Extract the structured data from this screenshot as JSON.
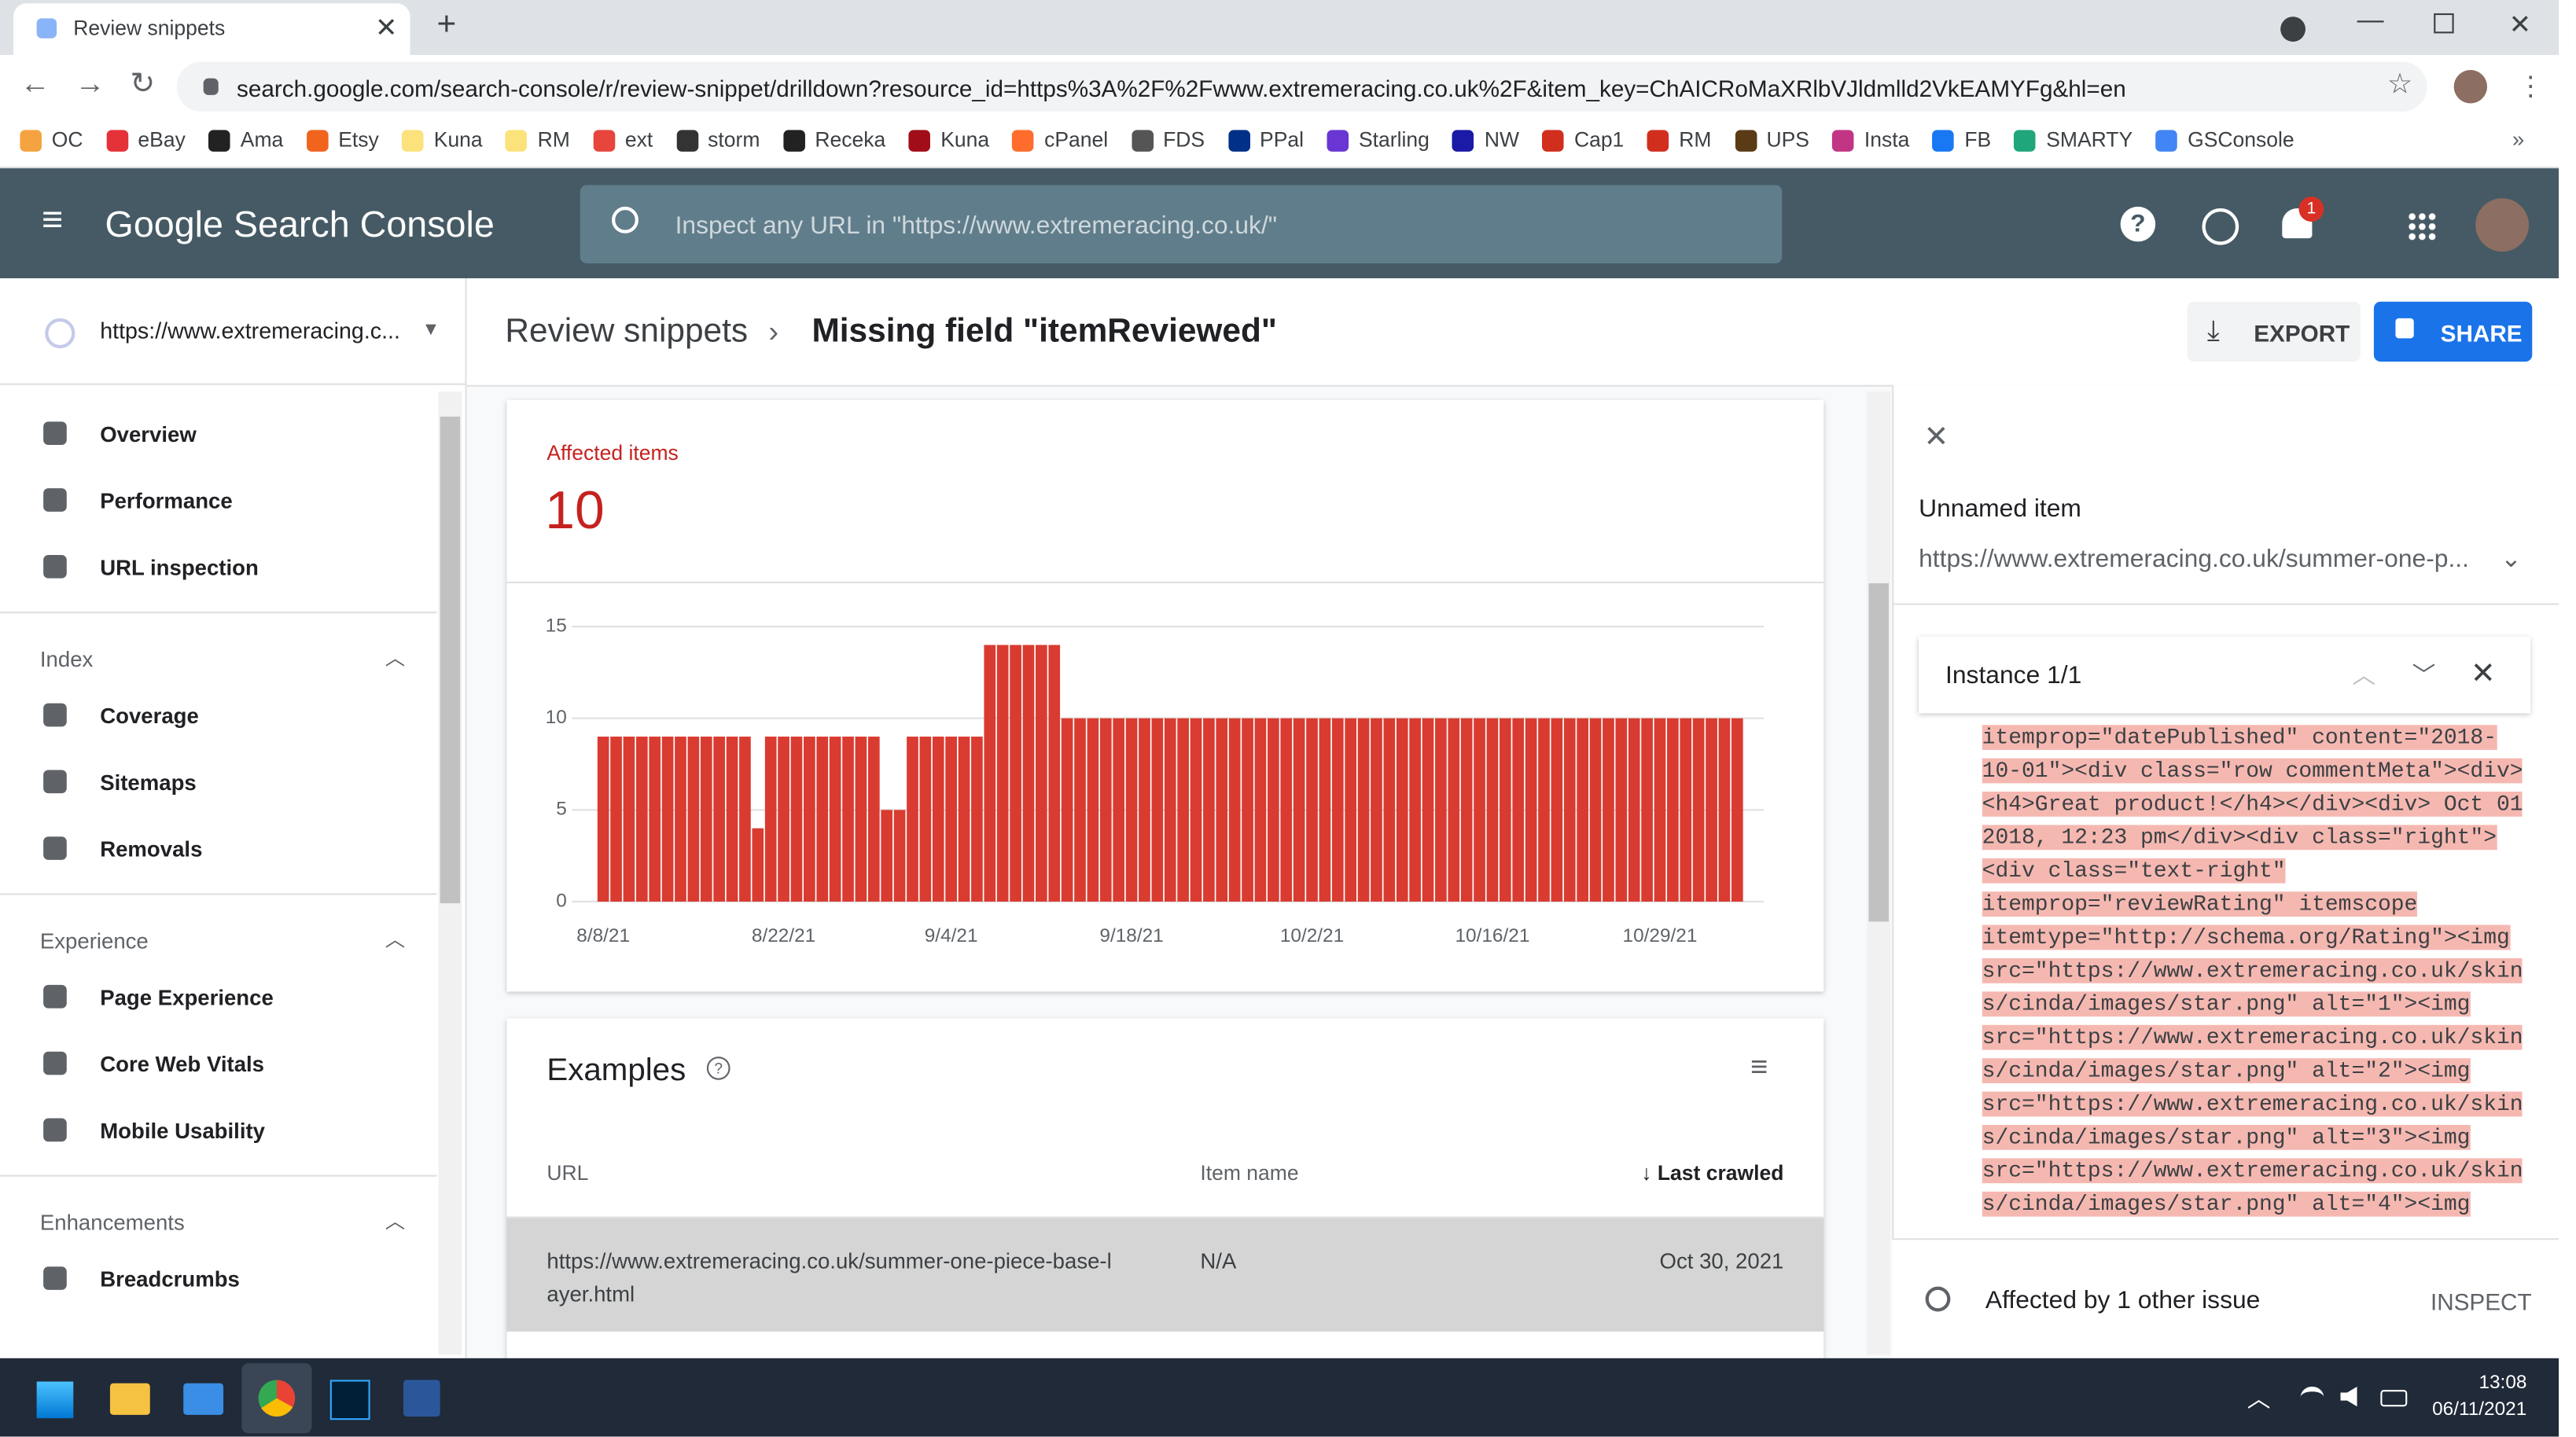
{
  "browser": {
    "tab_title": "Review snippets",
    "url": "search.google.com/search-console/r/review-snippet/drilldown?resource_id=https%3A%2F%2Fwww.extremeracing.co.uk%2F&item_key=ChAICRoMaXRlbVJldmlld2VkEAMYFg&hl=en",
    "bookmarks": [
      "OC",
      "eBay",
      "Ama",
      "Etsy",
      "Kuna",
      "RM",
      "ext",
      "storm",
      "Receka",
      "Kuna",
      "cPanel",
      "FDS",
      "PPal",
      "Starling",
      "NW",
      "Cap1",
      "RM",
      "UPS",
      "Insta",
      "FB",
      "SMARTY",
      "GSConsole"
    ]
  },
  "header": {
    "product": "Google Search Console",
    "search_placeholder": "Inspect any URL in \"https://www.extremeracing.co.uk/\"",
    "notification_count": "1"
  },
  "sidebar": {
    "property": "https://www.extremeracing.c...",
    "main_items": [
      "Overview",
      "Performance",
      "URL inspection"
    ],
    "sections": [
      {
        "title": "Index",
        "items": [
          "Coverage",
          "Sitemaps",
          "Removals"
        ]
      },
      {
        "title": "Experience",
        "items": [
          "Page Experience",
          "Core Web Vitals",
          "Mobile Usability"
        ]
      },
      {
        "title": "Enhancements",
        "items": [
          "Breadcrumbs"
        ]
      }
    ]
  },
  "page": {
    "breadcrumb_root": "Review snippets",
    "breadcrumb_current": "Missing field \"itemReviewed\"",
    "export": "EXPORT",
    "share": "SHARE"
  },
  "summary": {
    "label": "Affected items",
    "value": 10
  },
  "chart_data": {
    "type": "bar",
    "color": "#d93b30",
    "categories": [
      "8/8/21",
      null,
      null,
      null,
      null,
      null,
      null,
      null,
      null,
      null,
      null,
      null,
      null,
      null,
      "8/22/21",
      null,
      null,
      null,
      null,
      null,
      null,
      null,
      null,
      null,
      null,
      null,
      null,
      "9/4/21",
      null,
      null,
      null,
      null,
      null,
      null,
      null,
      null,
      null,
      null,
      null,
      null,
      null,
      "9/18/21",
      null,
      null,
      null,
      null,
      null,
      null,
      null,
      null,
      null,
      null,
      null,
      null,
      null,
      "10/2/21",
      null,
      null,
      null,
      null,
      null,
      null,
      null,
      null,
      null,
      null,
      null,
      null,
      null,
      "10/16/21",
      null,
      null,
      null,
      null,
      null,
      null,
      null,
      null,
      null,
      null,
      null,
      null,
      "10/29/21",
      null,
      null,
      null,
      null,
      null,
      null
    ],
    "values": [
      9,
      9,
      9,
      9,
      9,
      9,
      9,
      9,
      9,
      9,
      9,
      9,
      4,
      9,
      9,
      9,
      9,
      9,
      9,
      9,
      9,
      9,
      5,
      5,
      9,
      9,
      9,
      9,
      9,
      9,
      14,
      14,
      14,
      14,
      14,
      14,
      10,
      10,
      10,
      10,
      10,
      10,
      10,
      10,
      10,
      10,
      10,
      10,
      10,
      10,
      10,
      10,
      10,
      10,
      10,
      10,
      10,
      10,
      10,
      10,
      10,
      10,
      10,
      10,
      10,
      10,
      10,
      10,
      10,
      10,
      10,
      10,
      10,
      10,
      10,
      10,
      10,
      10,
      10,
      10,
      10,
      10,
      10,
      10,
      10,
      10,
      10,
      10,
      10
    ],
    "ylim": [
      0,
      15
    ],
    "yticks": [
      0,
      5,
      10,
      15
    ],
    "grid": true
  },
  "examples": {
    "title": "Examples",
    "columns": [
      "URL",
      "Item name",
      "Last crawled"
    ],
    "rows": [
      [
        "https://www.extremeracing.co.uk/summer-one-piece-base-layer.html",
        "N/A",
        "Oct 30, 2021"
      ]
    ]
  },
  "panel": {
    "title": "Unnamed item",
    "url": "https://www.extremeracing.co.uk/summer-one-p...",
    "instance": "Instance 1/1",
    "code_lines": [
      "itemprop=\"datePublished\" content=\"2018-",
      "10-01\"><div class=\"row commentMeta\"><div>",
      "<h4>Great product!</h4></div><div> Oct 01",
      "2018, 12:23 pm</div><div class=\"right\">",
      "<div class=\"text-right\"",
      "itemprop=\"reviewRating\" itemscope",
      "itemtype=\"http://schema.org/Rating\"><img",
      "src=\"https://www.extremeracing.co.uk/skin",
      "s/cinda/images/star.png\" alt=\"1\"><img",
      "src=\"https://www.extremeracing.co.uk/skin",
      "s/cinda/images/star.png\" alt=\"2\"><img",
      "src=\"https://www.extremeracing.co.uk/skin",
      "s/cinda/images/star.png\" alt=\"3\"><img",
      "src=\"https://www.extremeracing.co.uk/skin",
      "s/cinda/images/star.png\" alt=\"4\"><img"
    ],
    "footer": "Affected by 1 other issue",
    "inspect": "INSPECT"
  },
  "taskbar": {
    "time": "13:08",
    "date": "06/11/2021"
  }
}
